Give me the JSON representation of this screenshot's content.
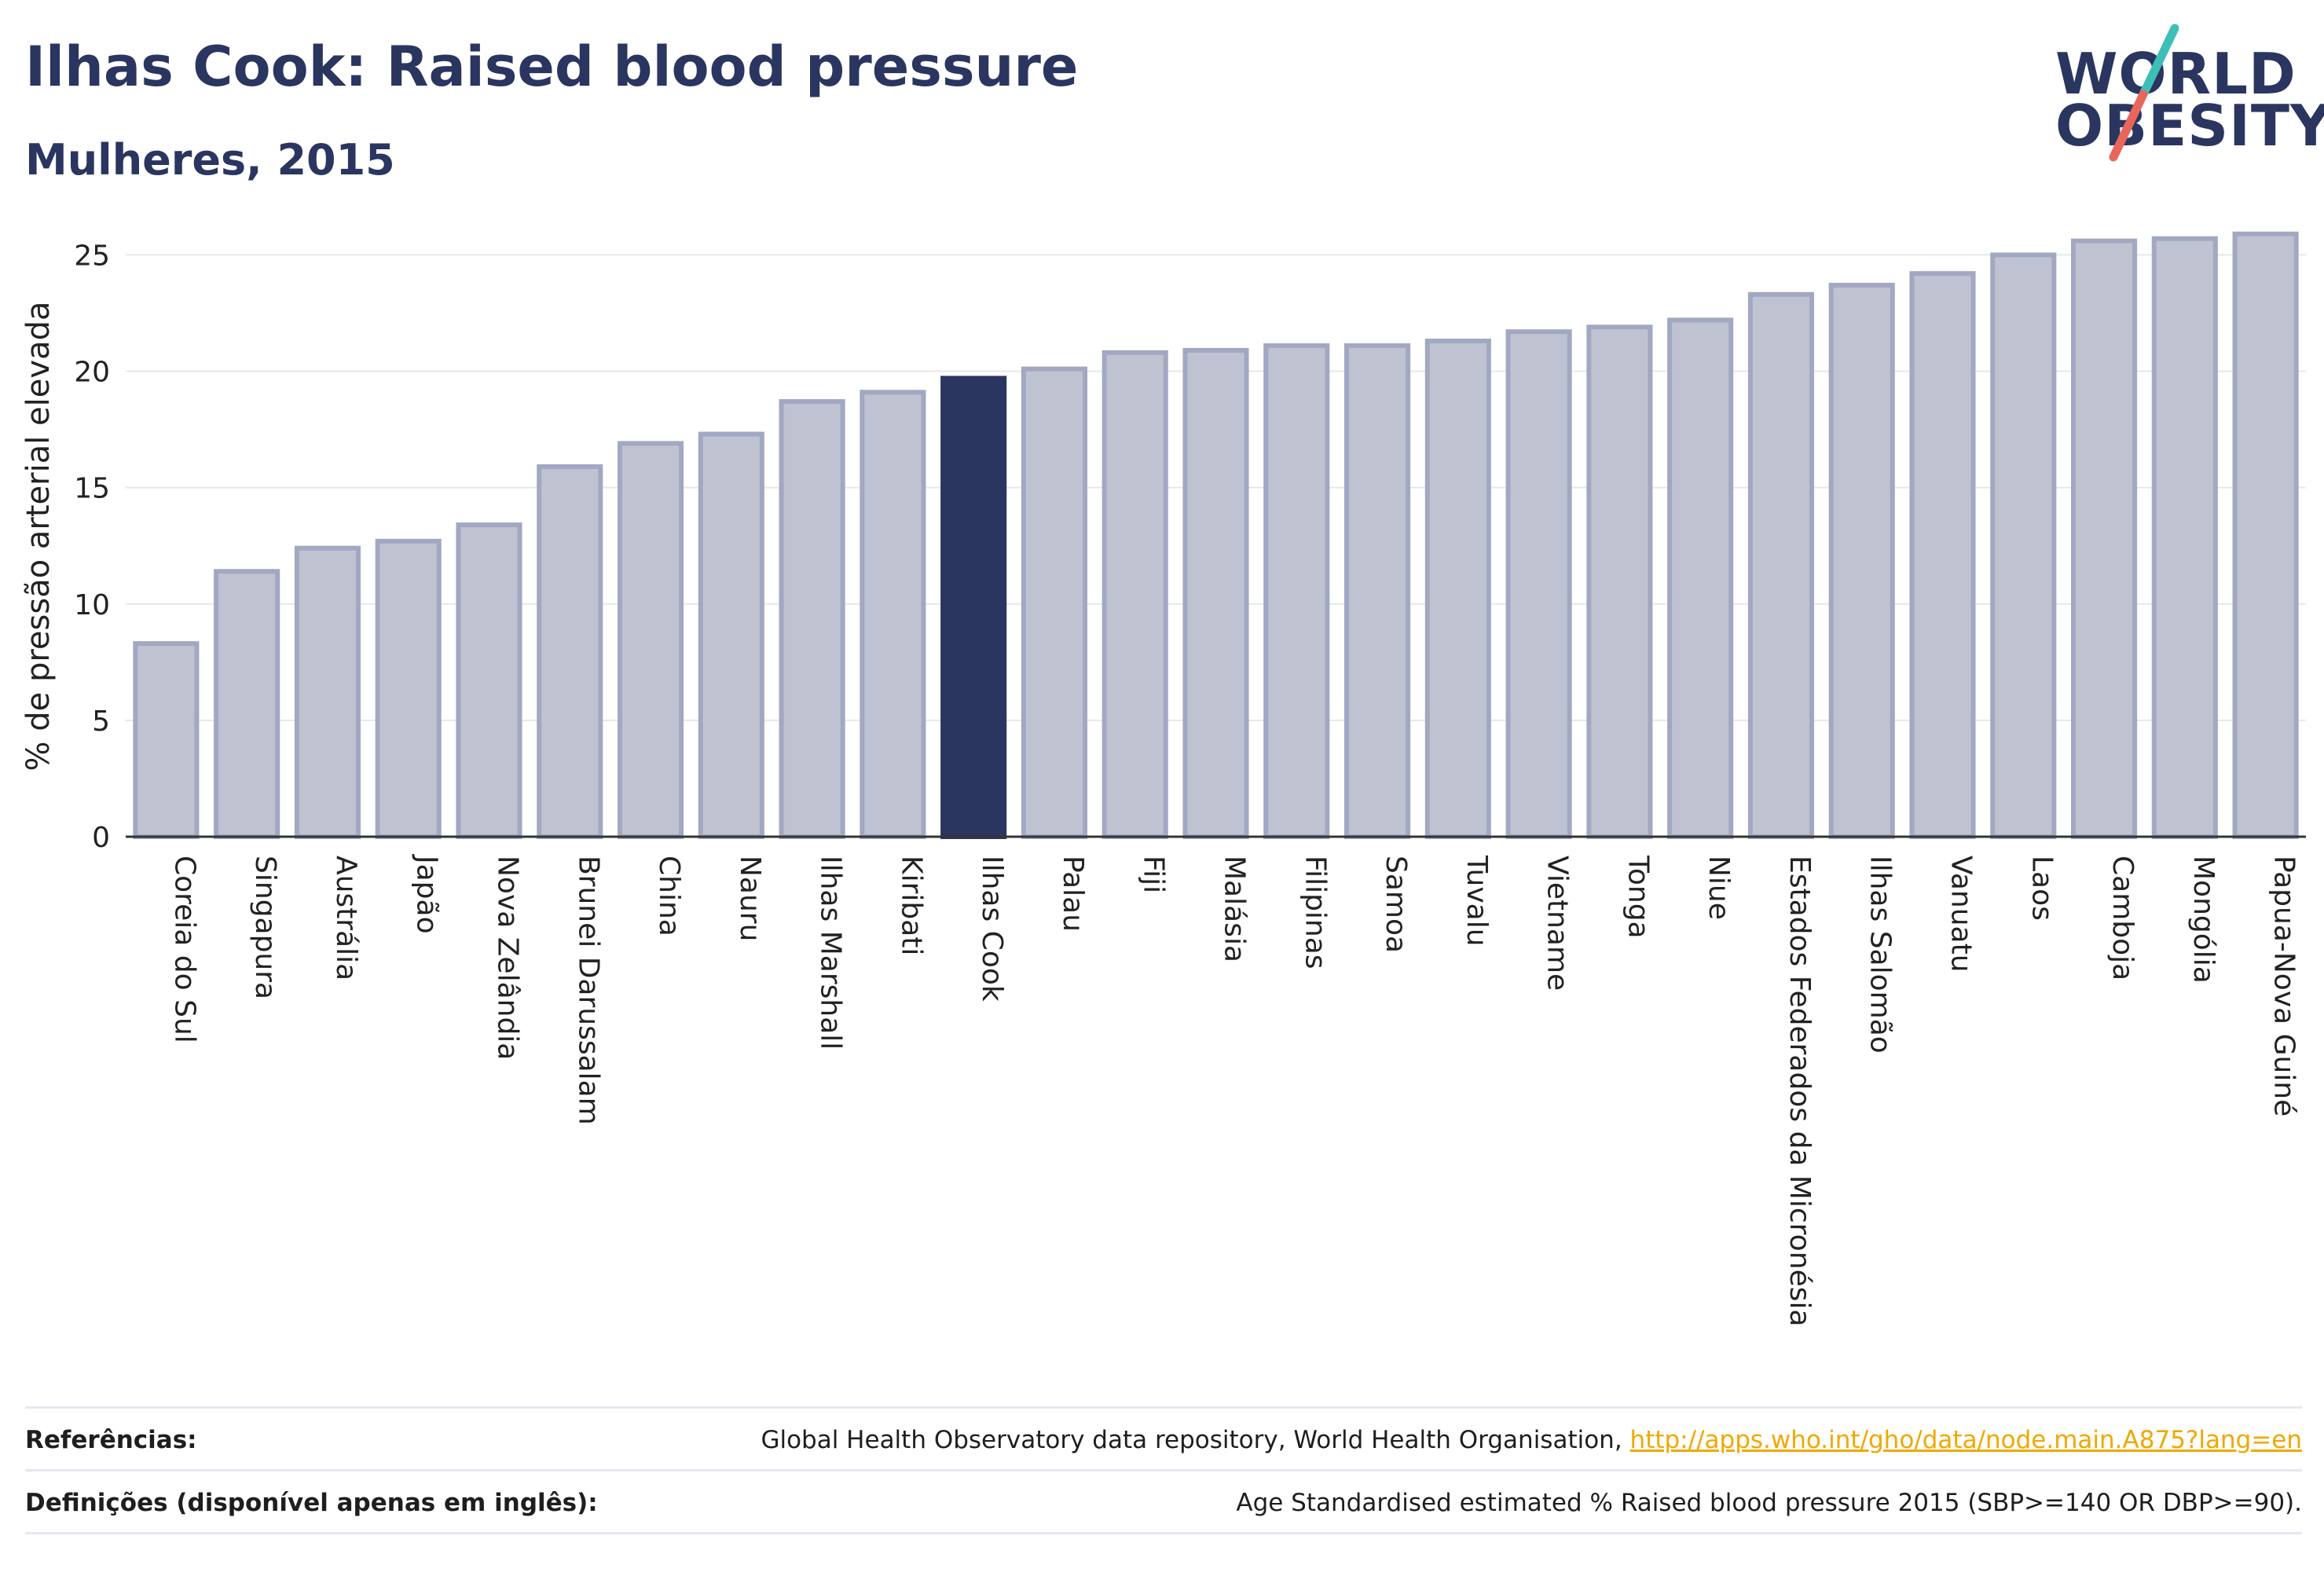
{
  "header": {
    "title": "Ilhas Cook: Raised blood pressure",
    "subtitle": "Mulheres, 2015"
  },
  "logo": {
    "line1": "WORLD",
    "line2": "OBESITY",
    "slash_colors": [
      "#3dbfb8",
      "#e8675a"
    ]
  },
  "colors": {
    "bar": "#bfc3d1",
    "bar_border": "#a2a8c1",
    "highlight": "#2a3560",
    "grid": "#e6e8ee",
    "axis": "#333333"
  },
  "chart_data": {
    "type": "bar",
    "title": "",
    "xlabel": "",
    "ylabel": "% de pressão arterial elevada",
    "ylim": [
      0,
      26.5
    ],
    "yticks": [
      0,
      5,
      10,
      15,
      20,
      25
    ],
    "grid": true,
    "highlight": "Ilhas Cook",
    "categories": [
      "Coreia do Sul",
      "Singapura",
      "Austrália",
      "Japão",
      "Nova Zelândia",
      "Brunei Darussalam",
      "China",
      "Nauru",
      "Ilhas Marshall",
      "Kiribati",
      "Ilhas Cook",
      "Palau",
      "Fiji",
      "Malásia",
      "Filipinas",
      "Samoa",
      "Tuvalu",
      "Vietname",
      "Tonga",
      "Niue",
      "Estados Federados da Micronésia",
      "Ilhas Salomão",
      "Vanuatu",
      "Laos",
      "Camboja",
      "Mongólia",
      "Papua-Nova Guiné"
    ],
    "values": [
      8.3,
      11.4,
      12.4,
      12.7,
      13.4,
      15.9,
      16.9,
      17.3,
      18.7,
      19.1,
      19.7,
      20.1,
      20.8,
      20.9,
      21.1,
      21.1,
      21.3,
      21.7,
      21.9,
      22.2,
      23.3,
      23.7,
      24.2,
      25.0,
      25.6,
      25.7,
      25.9
    ]
  },
  "footer": {
    "references_label": "Referências:",
    "references_text": "Global Health Observatory data repository, World Health Organisation, ",
    "references_link": "http://apps.who.int/gho/data/node.main.A875?lang=en",
    "definitions_label": "Definições (disponível apenas em inglês):",
    "definitions_text": "Age Standardised estimated % Raised blood pressure 2015 (SBP>=140 OR DBP>=90)."
  }
}
